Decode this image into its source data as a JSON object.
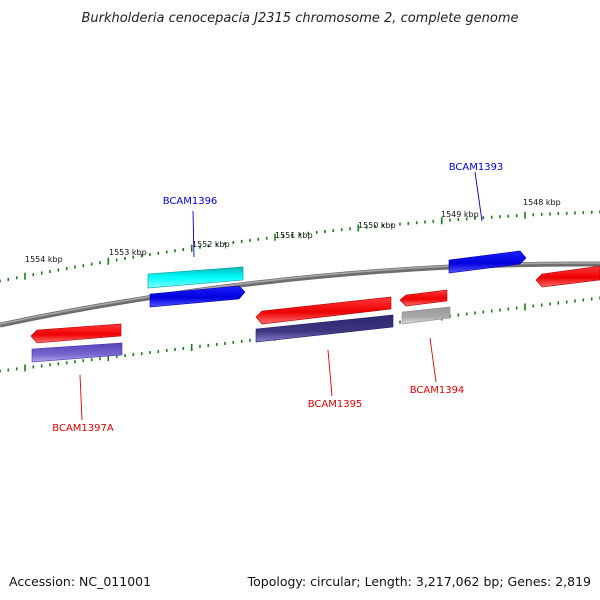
{
  "title": "Burkholderia cenocepacia J2315 chromosome 2, complete genome",
  "footer": {
    "accession": "Accession: NC_011001",
    "summary": "Topology: circular; Length: 3,217,062 bp; Genes: 2,819"
  },
  "scale_labels": [
    "1554 kbp",
    "1553 kbp",
    "1552 kbp",
    "1551 kbp",
    "1550 kbp",
    "1549 kbp",
    "1548 kbp"
  ],
  "gene_labels": [
    {
      "name": "BCAM1396",
      "color": "#0000cc"
    },
    {
      "name": "BCAM1393",
      "color": "#0000cc"
    },
    {
      "name": "BCAM1397A",
      "color": "#dd0000"
    },
    {
      "name": "BCAM1395",
      "color": "#dd0000"
    },
    {
      "name": "BCAM1394",
      "color": "#dd0000"
    }
  ],
  "colors": {
    "backbone": "#808080",
    "tick": "#1a7a1a",
    "forward_cds": "#0000ee",
    "forward_feature": "#00e5e5",
    "reverse_cds": "#ee0000",
    "reverse_feature_purple": "#7766cc",
    "reverse_feature_navy": "#3d3580",
    "reverse_feature_gray": "#aaaaaa"
  }
}
